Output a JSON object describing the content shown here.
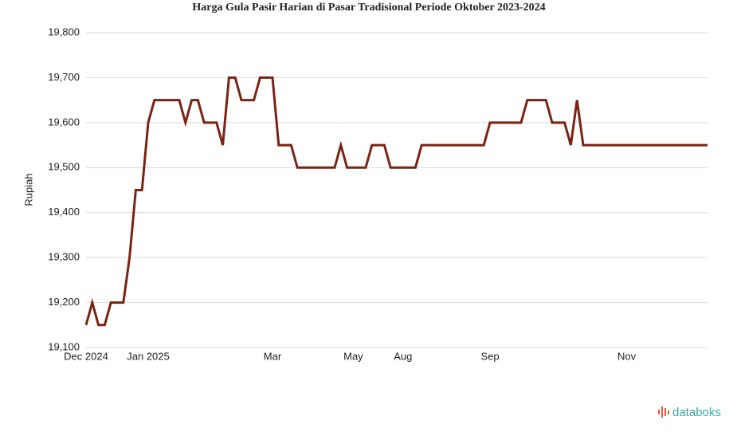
{
  "chart_data": {
    "type": "line",
    "title": "Harga Gula Pasir Harian di Pasar Tradisional Periode Oktober 2023-2024",
    "y_label": "Rupiah",
    "watermark": "databoks",
    "categories": [
      "Dec 2024",
      null,
      null,
      null,
      null,
      null,
      null,
      null,
      null,
      null,
      "Jan 2025",
      null,
      null,
      null,
      null,
      null,
      null,
      null,
      null,
      null,
      null,
      null,
      null,
      null,
      null,
      null,
      null,
      null,
      null,
      null,
      "Mar",
      null,
      null,
      null,
      null,
      null,
      null,
      null,
      null,
      null,
      null,
      null,
      null,
      "May",
      null,
      null,
      null,
      null,
      null,
      null,
      null,
      "Aug",
      null,
      null,
      null,
      null,
      null,
      null,
      null,
      null,
      null,
      null,
      null,
      null,
      null,
      "Sep",
      null,
      null,
      null,
      null,
      null,
      null,
      null,
      null,
      null,
      null,
      null,
      null,
      null,
      null,
      null,
      null,
      null,
      null,
      null,
      null,
      null,
      "Nov",
      null,
      null,
      null,
      null,
      null,
      null,
      null,
      null,
      null,
      null,
      null,
      null,
      null
    ],
    "series": [
      {
        "name": "Rupiah",
        "color": "#7a2314",
        "values": [
          19150,
          19200,
          19150,
          19150,
          19200,
          19200,
          19200,
          19300,
          19450,
          19450,
          19600,
          19650,
          19650,
          19650,
          19650,
          19650,
          19600,
          19650,
          19650,
          19600,
          19600,
          19600,
          19550,
          19700,
          19700,
          19650,
          19650,
          19650,
          19700,
          19700,
          19700,
          19550,
          19550,
          19550,
          19500,
          19500,
          19500,
          19500,
          19500,
          19500,
          19500,
          19550,
          19500,
          19500,
          19500,
          19500,
          19550,
          19550,
          19550,
          19500,
          19500,
          19500,
          19500,
          19500,
          19550,
          19550,
          19550,
          19550,
          19550,
          19550,
          19550,
          19550,
          19550,
          19550,
          19550,
          19600,
          19600,
          19600,
          19600,
          19600,
          19600,
          19650,
          19650,
          19650,
          19650,
          19600,
          19600,
          19600,
          19550,
          19650,
          19550,
          19550,
          19550,
          19550,
          19550,
          19550,
          19550,
          19550,
          19550,
          19550,
          19550,
          19550,
          19550,
          19550,
          19550,
          19550,
          19550,
          19550,
          19550,
          19550,
          19550
        ]
      }
    ],
    "ylim": [
      19100,
      19800
    ],
    "yticks": [
      {
        "value": 19100,
        "label": "19,100"
      },
      {
        "value": 19200,
        "label": "19,200"
      },
      {
        "value": 19300,
        "label": "19,300"
      },
      {
        "value": 19400,
        "label": "19,400"
      },
      {
        "value": 19500,
        "label": "19,500"
      },
      {
        "value": 19600,
        "label": "19,600"
      },
      {
        "value": 19700,
        "label": "19,700"
      },
      {
        "value": 19800,
        "label": "19,800"
      }
    ],
    "grid": true
  }
}
